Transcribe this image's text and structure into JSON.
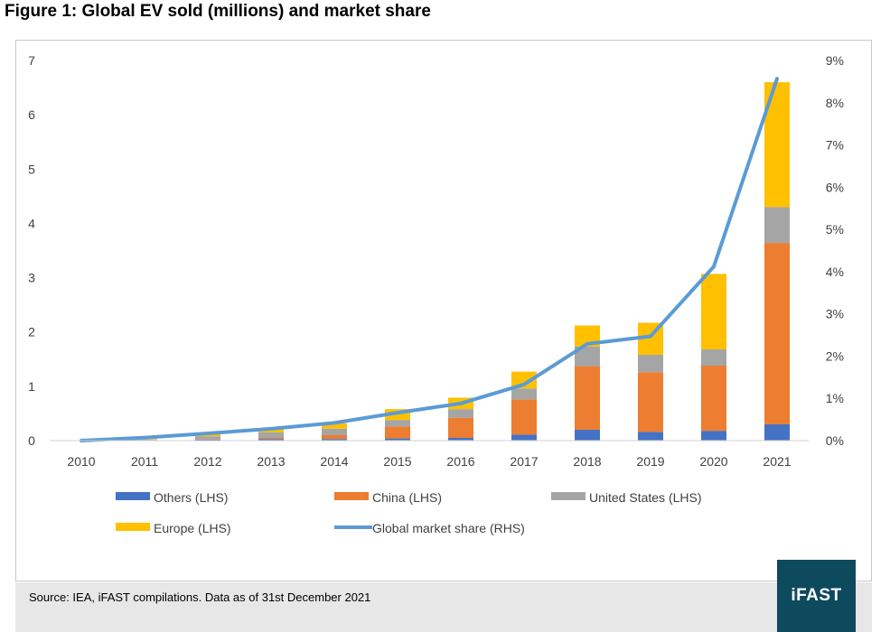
{
  "figure": {
    "title": "Figure 1: Global EV sold (millions) and market share",
    "source": "Source: IEA, iFAST compilations. Data as of 31st December 2021",
    "logo_text": "iFAST"
  },
  "chart_data": {
    "type": "bar",
    "stacked": true,
    "categories": [
      "2010",
      "2011",
      "2012",
      "2013",
      "2014",
      "2015",
      "2016",
      "2017",
      "2018",
      "2019",
      "2020",
      "2021"
    ],
    "series": [
      {
        "name": "Others (LHS)",
        "color": "#4472c4",
        "axis": "left",
        "values": [
          0.0,
          0.0,
          0.02,
          0.03,
          0.03,
          0.04,
          0.05,
          0.11,
          0.2,
          0.16,
          0.18,
          0.3
        ]
      },
      {
        "name": "China (LHS)",
        "color": "#ed7d31",
        "axis": "left",
        "values": [
          0.0,
          0.01,
          0.01,
          0.02,
          0.07,
          0.22,
          0.37,
          0.65,
          1.17,
          1.1,
          1.2,
          3.34
        ]
      },
      {
        "name": "United States (LHS)",
        "color": "#a5a5a5",
        "axis": "left",
        "values": [
          0.0,
          0.01,
          0.05,
          0.1,
          0.12,
          0.12,
          0.16,
          0.2,
          0.36,
          0.32,
          0.3,
          0.66
        ]
      },
      {
        "name": "Europe (LHS)",
        "color": "#ffc000",
        "axis": "left",
        "values": [
          0.0,
          0.01,
          0.05,
          0.06,
          0.1,
          0.2,
          0.21,
          0.31,
          0.39,
          0.59,
          1.39,
          2.3
        ]
      },
      {
        "name": "Global market share (RHS)",
        "color": "#5b9bd5",
        "type": "line",
        "axis": "right",
        "values": [
          0.0,
          0.07,
          0.17,
          0.28,
          0.42,
          0.66,
          0.88,
          1.33,
          2.29,
          2.47,
          4.12,
          8.57
        ]
      }
    ],
    "y_left": {
      "min": 0,
      "max": 7,
      "ticks": [
        "0",
        "1",
        "2",
        "3",
        "4",
        "5",
        "6",
        "7"
      ]
    },
    "y_right": {
      "min": 0,
      "max": 9,
      "ticks": [
        "0%",
        "1%",
        "2%",
        "3%",
        "4%",
        "5%",
        "6%",
        "7%",
        "8%",
        "9%"
      ]
    },
    "grid": false,
    "legend_position": "bottom"
  }
}
